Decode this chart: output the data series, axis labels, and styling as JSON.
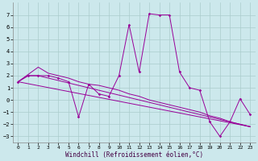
{
  "background_color": "#cce8ec",
  "grid_color": "#aacccc",
  "line_color": "#990099",
  "xlim": [
    -0.5,
    23.5
  ],
  "ylim": [
    -3.5,
    8.0
  ],
  "xticks": [
    0,
    1,
    2,
    3,
    4,
    5,
    6,
    7,
    8,
    9,
    10,
    11,
    12,
    13,
    14,
    15,
    16,
    17,
    18,
    19,
    20,
    21,
    22,
    23
  ],
  "yticks": [
    -3,
    -2,
    -1,
    0,
    1,
    2,
    3,
    4,
    5,
    6,
    7
  ],
  "xlabel": "Windchill (Refroidissement éolien,°C)",
  "series0_x": [
    0,
    1,
    2,
    3,
    4,
    5,
    6,
    7,
    8,
    9,
    10,
    11,
    12,
    13,
    14,
    15,
    16,
    17,
    18,
    19,
    20,
    21,
    22,
    23
  ],
  "series0_y": [
    1.5,
    2.0,
    2.0,
    2.0,
    1.8,
    1.5,
    -1.4,
    1.3,
    0.5,
    0.3,
    2.0,
    6.2,
    2.3,
    7.1,
    7.0,
    7.0,
    2.3,
    1.0,
    0.8,
    -1.8,
    -3.0,
    -1.8,
    0.1,
    -1.2
  ],
  "series1_x": [
    0,
    23
  ],
  "series1_y": [
    1.5,
    -2.2
  ],
  "series2_x": [
    0,
    2,
    3,
    4,
    5,
    6,
    7,
    8,
    9,
    10,
    11,
    12,
    13,
    14,
    15,
    16,
    17,
    18,
    19,
    20,
    21,
    22,
    23
  ],
  "series2_y": [
    1.5,
    2.7,
    2.2,
    2.0,
    1.8,
    1.5,
    1.3,
    1.2,
    1.0,
    0.8,
    0.5,
    0.3,
    0.0,
    -0.2,
    -0.4,
    -0.6,
    -0.8,
    -1.0,
    -1.3,
    -1.5,
    -1.8,
    -2.0,
    -2.2
  ],
  "series3_x": [
    0,
    1,
    2,
    3,
    4,
    5,
    6,
    7,
    8,
    9,
    10,
    11,
    12,
    13,
    14,
    15,
    16,
    17,
    18,
    19,
    20,
    21,
    22,
    23
  ],
  "series3_y": [
    1.5,
    2.0,
    2.0,
    1.8,
    1.6,
    1.4,
    1.2,
    1.0,
    0.8,
    0.6,
    0.4,
    0.2,
    0.0,
    -0.2,
    -0.4,
    -0.6,
    -0.8,
    -1.0,
    -1.2,
    -1.4,
    -1.6,
    -1.8,
    -2.0,
    -2.2
  ]
}
